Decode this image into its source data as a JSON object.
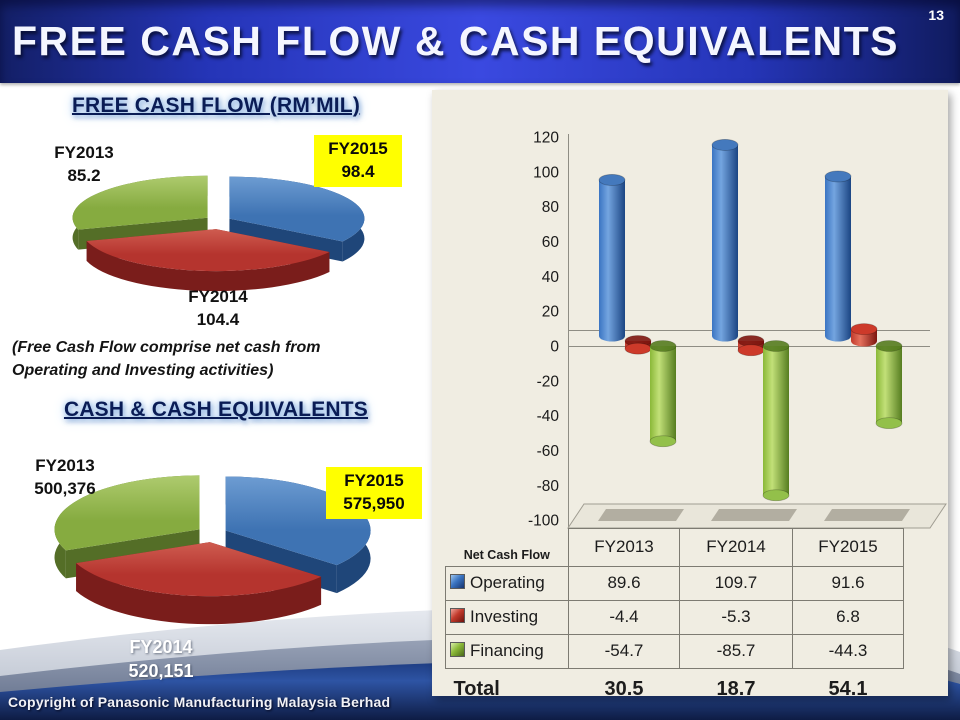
{
  "slide": {
    "title": "FREE CASH FLOW & CASH EQUIVALENTS",
    "page_number": "13",
    "footer": "Copyright of Panasonic Manufacturing Malaysia Berhad"
  },
  "sections": {
    "free_cash_flow": {
      "heading": "FREE CASH FLOW (RM’MIL)",
      "note_line1": "(Free Cash Flow comprise net cash from",
      "note_line2": "Operating and Investing activities)"
    },
    "cash_equivalents": {
      "heading": "CASH & CASH EQUIVALENTS"
    }
  },
  "chart_data": [
    {
      "type": "pie",
      "name": "free-cash-flow-rm-mil",
      "labels": [
        "FY2013",
        "FY2014",
        "FY2015"
      ],
      "values": [
        85.2,
        104.4,
        98.4
      ],
      "display_values": [
        "85.2",
        "104.4",
        "98.4"
      ],
      "highlighted": "FY2015",
      "highlight_bg": "#ffff00",
      "slice_colors": [
        {
          "top": "#86ab40",
          "light": "#aecb6e",
          "side": "#546e27"
        },
        {
          "top": "#b5342e",
          "light": "#cf5c50",
          "side": "#7a1d1b"
        },
        {
          "top": "#3e73b3",
          "light": "#6d9cd2",
          "side": "#1f4679"
        }
      ]
    },
    {
      "type": "pie",
      "name": "cash-and-cash-equivalents",
      "labels": [
        "FY2013",
        "FY2014",
        "FY2015"
      ],
      "values": [
        500376,
        520151,
        575950
      ],
      "display_values": [
        "500,376",
        "520,151",
        "575,950"
      ],
      "highlighted": "FY2015",
      "highlight_bg": "#ffff00",
      "slice_colors": [
        {
          "top": "#86ab40",
          "light": "#aecb6e",
          "side": "#546e27"
        },
        {
          "top": "#b5342e",
          "light": "#cf5c50",
          "side": "#7a1d1b"
        },
        {
          "top": "#3e73b3",
          "light": "#6d9cd2",
          "side": "#1f4679"
        }
      ]
    },
    {
      "type": "bar",
      "name": "net-cash-flow",
      "title": "Net Cash Flow",
      "categories": [
        "FY2013",
        "FY2014",
        "FY2015"
      ],
      "series": [
        {
          "name": "Operating",
          "values": [
            89.6,
            109.7,
            91.6
          ],
          "color": {
            "base": "#3a74c2",
            "light": "#74a5e0",
            "dark": "#1b4583",
            "cap": "#4479bd"
          }
        },
        {
          "name": "Investing",
          "values": [
            -4.4,
            -5.3,
            6.8
          ],
          "color": {
            "base": "#c23a2c",
            "light": "#e4705c",
            "dark": "#7e150f",
            "cap": "#cd3a2a"
          }
        },
        {
          "name": "Financing",
          "values": [
            -54.7,
            -85.7,
            -44.3
          ],
          "color": {
            "base": "#8ab838",
            "light": "#c2e078",
            "dark": "#567d20",
            "cap": "#93c04a"
          }
        }
      ],
      "total_label": "Total",
      "totals": [
        30.5,
        18.7,
        54.1
      ],
      "ylim": [
        -100,
        120
      ],
      "ytick_step": 20,
      "grid": false,
      "legend_position": "table-left",
      "plot_bg": "#f0ede2"
    }
  ]
}
